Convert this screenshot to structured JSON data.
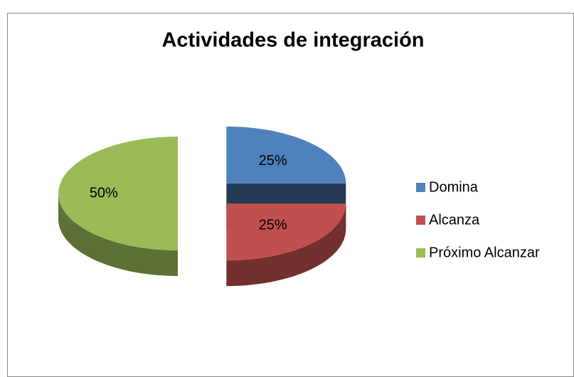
{
  "chart_data": {
    "type": "pie3d",
    "title": "Actividades de integración",
    "categories": [
      "Domina",
      "Alcanza",
      "Próximo Alcanzar"
    ],
    "values": [
      25,
      25,
      50
    ],
    "value_labels": [
      "25%",
      "25%",
      "50%"
    ],
    "colors": [
      "#4f81bd",
      "#c0504d",
      "#9bbb59"
    ],
    "legend": "right"
  }
}
